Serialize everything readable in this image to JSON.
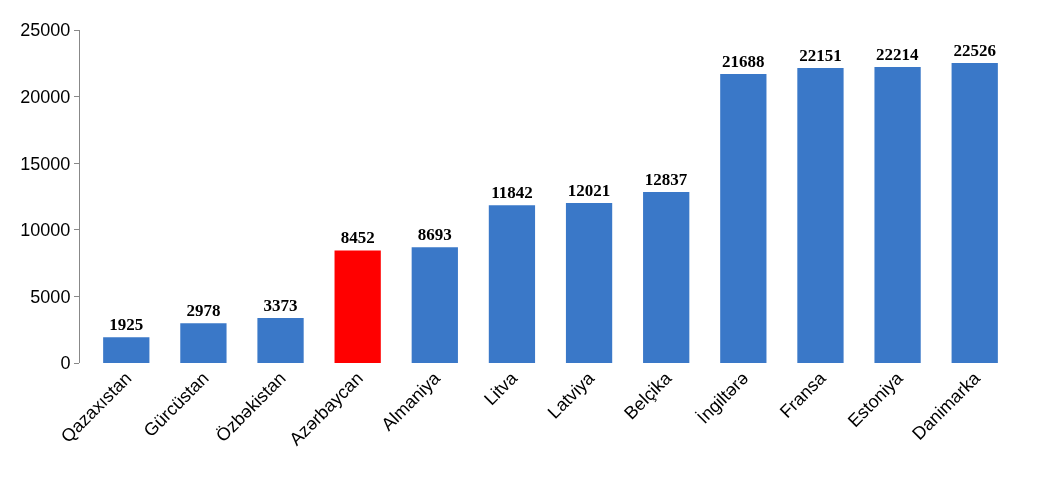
{
  "chart_data": {
    "type": "bar",
    "categories": [
      "Qazaxıstan",
      "Gürcüstan",
      "Özbəkistan",
      "Azərbaycan",
      "Almaniya",
      "Litva",
      "Latviya",
      "Belçika",
      "İngiltərə",
      "Fransa",
      "Estoniya",
      "Danimarka"
    ],
    "values": [
      1925,
      2978,
      3373,
      8452,
      8693,
      11842,
      12021,
      12837,
      21688,
      22151,
      22214,
      22526
    ],
    "colors": [
      "#3a78c8",
      "#3a78c8",
      "#3a78c8",
      "#ff0000",
      "#3a78c8",
      "#3a78c8",
      "#3a78c8",
      "#3a78c8",
      "#3a78c8",
      "#3a78c8",
      "#3a78c8",
      "#3a78c8"
    ],
    "ylim": [
      0,
      25000
    ],
    "yticks": [
      0,
      5000,
      10000,
      15000,
      20000,
      25000
    ],
    "data_labels": true
  }
}
